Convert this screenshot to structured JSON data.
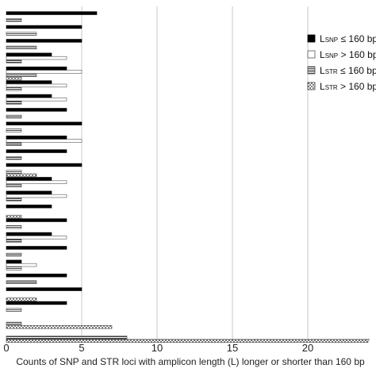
{
  "chart_data": {
    "type": "bar",
    "orientation": "horizontal",
    "xlabel": "Counts of SNP and STR loci with amplicon length (L) longer or shorter than 160 bp",
    "xlim": [
      0,
      24
    ],
    "xticks": [
      0,
      5,
      10,
      15,
      20
    ],
    "grid": true,
    "legend_position": "top-right",
    "series": [
      {
        "name_main": "L",
        "name_sub": "SNP",
        "name_rest": " ≤ 160 bp",
        "fill": "solid-black"
      },
      {
        "name_main": "L",
        "name_sub": "SNP",
        "name_rest": " > 160 bp",
        "fill": "white"
      },
      {
        "name_main": "L",
        "name_sub": "STR",
        "name_rest": " ≤ 160 bp",
        "fill": "horizontal-stripes"
      },
      {
        "name_main": "L",
        "name_sub": "STR",
        "name_rest": " > 160 bp",
        "fill": "dotted"
      }
    ],
    "groups": [
      {
        "values": [
          6,
          0,
          1,
          0
        ]
      },
      {
        "values": [
          5,
          0,
          2,
          0
        ]
      },
      {
        "values": [
          5,
          0,
          2,
          0
        ]
      },
      {
        "values": [
          3,
          4,
          1,
          0
        ]
      },
      {
        "values": [
          4,
          5,
          2,
          1
        ]
      },
      {
        "values": [
          3,
          4,
          1,
          0
        ]
      },
      {
        "values": [
          3,
          4,
          1,
          0
        ]
      },
      {
        "values": [
          4,
          0,
          1,
          0
        ]
      },
      {
        "values": [
          5,
          0,
          1,
          0
        ]
      },
      {
        "values": [
          4,
          5,
          1,
          0
        ]
      },
      {
        "values": [
          4,
          0,
          1,
          0
        ]
      },
      {
        "values": [
          5,
          0,
          1,
          2
        ]
      },
      {
        "values": [
          3,
          4,
          1,
          0
        ]
      },
      {
        "values": [
          3,
          4,
          1,
          0
        ]
      },
      {
        "values": [
          3,
          0,
          0,
          1
        ]
      },
      {
        "values": [
          4,
          0,
          1,
          0
        ]
      },
      {
        "values": [
          3,
          4,
          1,
          0
        ]
      },
      {
        "values": [
          4,
          0,
          1,
          0
        ]
      },
      {
        "values": [
          1,
          2,
          1,
          0
        ]
      },
      {
        "values": [
          4,
          0,
          2,
          0
        ]
      },
      {
        "values": [
          5,
          0,
          0,
          2
        ]
      },
      {
        "values": [
          4,
          0,
          1,
          0
        ]
      },
      {
        "values": [
          0,
          0,
          1,
          7
        ]
      },
      {
        "values": [
          0,
          0,
          8,
          24
        ]
      }
    ]
  }
}
